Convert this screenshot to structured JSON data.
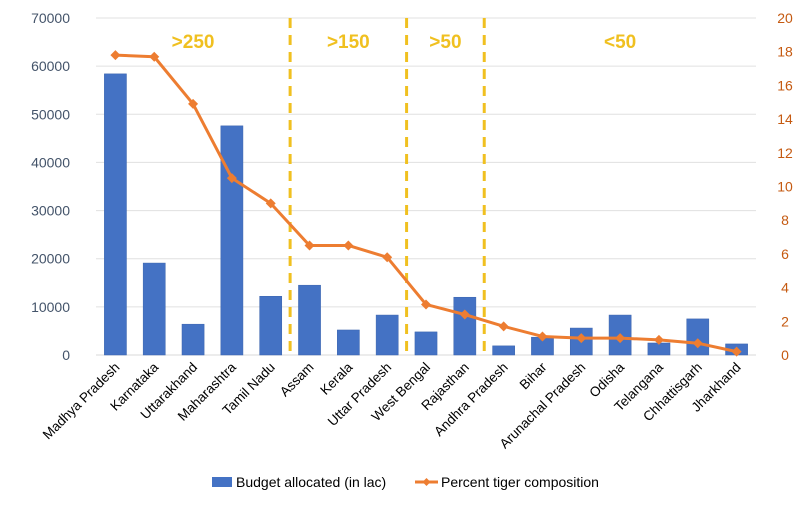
{
  "chart_data": {
    "type": "bar+line",
    "title": "",
    "categories": [
      "Madhya Pradesh",
      "Karnataka",
      "Uttarakhand",
      "Maharashtra",
      "Tamil Nadu",
      "Assam",
      "Kerala",
      "Uttar Pradesh",
      "West Bengal",
      "Rajasthan",
      "Andhra Pradesh",
      "Bihar",
      "Arunachal Pradesh",
      "Odisha",
      "Telangana",
      "Chhattisgarh",
      "Jharkhand"
    ],
    "series": [
      {
        "name": "Budget allocated (in lac)",
        "type": "bar",
        "axis": "left",
        "color": "#4472c4",
        "values": [
          58400,
          19100,
          6400,
          47600,
          12200,
          14500,
          5200,
          8300,
          4800,
          12000,
          1900,
          3700,
          5600,
          8300,
          2500,
          7500,
          2300
        ]
      },
      {
        "name": "Percent tiger composition",
        "type": "line",
        "axis": "right",
        "color": "#ed7d31",
        "marker": "diamond",
        "values": [
          17.8,
          17.7,
          14.9,
          10.5,
          9.0,
          6.5,
          6.5,
          5.8,
          3.0,
          2.4,
          1.7,
          1.1,
          1.0,
          1.0,
          0.9,
          0.7,
          0.2
        ]
      }
    ],
    "left_axis": {
      "label": "",
      "ylim": [
        0,
        70000
      ],
      "ticks": [
        "0",
        "10000",
        "20000",
        "30000",
        "40000",
        "50000",
        "60000",
        "70000"
      ],
      "color": "#44546a"
    },
    "right_axis": {
      "label": "",
      "ylim": [
        0,
        20
      ],
      "ticks": [
        "0",
        "2",
        "4",
        "6",
        "8",
        "10",
        "12",
        "14",
        "16",
        "18",
        "20"
      ],
      "color": "#c55a11"
    },
    "grid": true,
    "bands": [
      {
        "label": ">250",
        "from_index": 0,
        "to_index": 4
      },
      {
        "label": ">150",
        "from_index": 5,
        "to_index": 7
      },
      {
        "label": ">50",
        "from_index": 8,
        "to_index": 9
      },
      {
        "label": "<50",
        "from_index": 10,
        "to_index": 16
      }
    ],
    "band_divider_color": "#f0c020",
    "legend": {
      "position": "bottom",
      "items": [
        "Budget allocated (in lac)",
        "Percent tiger composition"
      ]
    }
  }
}
